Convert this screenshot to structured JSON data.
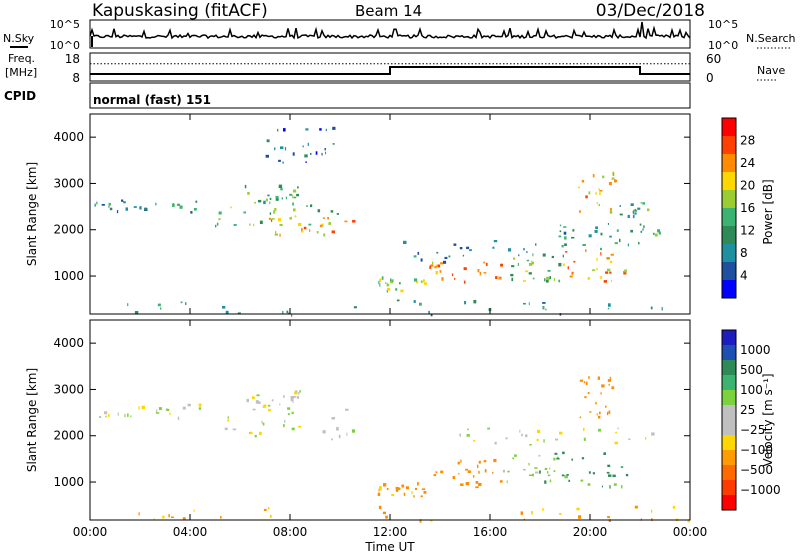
{
  "header": {
    "station": "Kapuskasing (fitACF)",
    "beam": "Beam 14",
    "date": "03/Dec/2018"
  },
  "noise_panel": {
    "left_label": "N.Sky",
    "right_label": "N.Search",
    "left_ticks": [
      "10^5",
      "10^0"
    ],
    "right_ticks": [
      "10^5",
      "10^0"
    ]
  },
  "freq_panel": {
    "left_label_1": "Freq.",
    "left_label_2": "[MHz]",
    "right_label": "Nave",
    "left_ticks": [
      "18",
      "8"
    ],
    "right_ticks": [
      "60",
      "0"
    ]
  },
  "cpid": {
    "label": "CPID",
    "value": "normal (fast) 151"
  },
  "power_colorbar": {
    "label": "Power [dB]",
    "ticks": [
      "28",
      "24",
      "20",
      "16",
      "12",
      "8",
      "4"
    ],
    "colors": [
      "#ff0000",
      "#ff4000",
      "#ff8c00",
      "#ffd700",
      "#9acd32",
      "#3cb371",
      "#2e8b57",
      "#1e90a0",
      "#1e50a0",
      "#0000ff"
    ]
  },
  "velocity_colorbar": {
    "label": "Velocity [m s⁻¹]",
    "ticks": [
      "1000",
      "500",
      "100",
      "25",
      "−25",
      "−100",
      "−500",
      "−1000"
    ],
    "colors": [
      "#1e1ebe",
      "#1e50b4",
      "#2e8b57",
      "#3cb371",
      "#7cd23c",
      "#c0c0c0",
      "#c0c0c0",
      "#ffd700",
      "#ff9c00",
      "#ff6a00",
      "#ff3c00",
      "#ff0000"
    ]
  },
  "chart_data": {
    "type": "heatmap",
    "title": "Kapuskasing (fitACF)",
    "xlabel": "Time UT",
    "ylabel": "Slant Range [km]",
    "x_ticks": [
      "00:00",
      "04:00",
      "08:00",
      "12:00",
      "16:00",
      "20:00",
      "00:00"
    ],
    "y_ticks": [
      1000,
      2000,
      3000,
      4000
    ],
    "x_range_hours": [
      0,
      24
    ],
    "y_range_km": [
      180,
      4500
    ],
    "frequency_steps": [
      {
        "from_hour": 0,
        "to_hour": 12,
        "freq_mhz": 10.5
      },
      {
        "from_hour": 12,
        "to_hour": 22,
        "freq_mhz": 13.0
      },
      {
        "from_hour": 22,
        "to_hour": 24,
        "freq_mhz": 10.5
      }
    ],
    "nave_level": 37,
    "power_regions": [
      {
        "t0": 0.0,
        "t1": 4.5,
        "r0": 2400,
        "r1": 2700,
        "power": 9
      },
      {
        "t0": 5.0,
        "t1": 10.5,
        "r0": 2100,
        "r1": 2600,
        "power": 14
      },
      {
        "t0": 7.0,
        "t1": 10.5,
        "r0": 1900,
        "r1": 2300,
        "power": 20
      },
      {
        "t0": 6.0,
        "t1": 8.5,
        "r0": 2600,
        "r1": 3000,
        "power": 12
      },
      {
        "t0": 7.0,
        "t1": 10.0,
        "r0": 3400,
        "r1": 4300,
        "power": 6
      },
      {
        "t0": 11.5,
        "t1": 13.5,
        "r0": 700,
        "r1": 1000,
        "power": 16
      },
      {
        "t0": 13.5,
        "t1": 16.5,
        "r0": 900,
        "r1": 1400,
        "power": 22
      },
      {
        "t0": 12.5,
        "t1": 19.0,
        "r0": 1300,
        "r1": 1800,
        "power": 8
      },
      {
        "t0": 16.5,
        "t1": 19.0,
        "r0": 900,
        "r1": 1400,
        "power": 14
      },
      {
        "t0": 19.0,
        "t1": 21.5,
        "r0": 900,
        "r1": 1600,
        "power": 22
      },
      {
        "t0": 19.5,
        "t1": 21.0,
        "r0": 2400,
        "r1": 3300,
        "power": 20
      },
      {
        "t0": 18.5,
        "t1": 22.0,
        "r0": 1600,
        "r1": 2200,
        "power": 10
      },
      {
        "t0": 21.0,
        "t1": 23.0,
        "r0": 1900,
        "r1": 2600,
        "power": 12
      },
      {
        "t0": 0.0,
        "t1": 24.0,
        "r0": 180,
        "r1": 500,
        "power": 10
      }
    ],
    "velocity_regions": [
      {
        "t0": 0.0,
        "t1": 4.5,
        "r0": 2400,
        "r1": 2700,
        "velocity": 0
      },
      {
        "t0": 5.0,
        "t1": 10.5,
        "r0": 1900,
        "r1": 2600,
        "velocity": 0
      },
      {
        "t0": 6.0,
        "t1": 8.5,
        "r0": 2600,
        "r1": 3000,
        "velocity": 0
      },
      {
        "t0": 11.5,
        "t1": 13.5,
        "r0": 700,
        "r1": 1000,
        "velocity": -150
      },
      {
        "t0": 13.5,
        "t1": 16.5,
        "r0": 900,
        "r1": 1500,
        "velocity": -300
      },
      {
        "t0": 16.5,
        "t1": 19.0,
        "r0": 1000,
        "r1": 1600,
        "velocity": 50
      },
      {
        "t0": 18.5,
        "t1": 21.5,
        "r0": 900,
        "r1": 1700,
        "velocity": 120
      },
      {
        "t0": 19.5,
        "t1": 21.0,
        "r0": 2400,
        "r1": 3300,
        "velocity": -300
      },
      {
        "t0": 14.5,
        "t1": 22.5,
        "r0": 1800,
        "r1": 2200,
        "velocity": 0
      },
      {
        "t0": 0.0,
        "t1": 24.0,
        "r0": 180,
        "r1": 500,
        "velocity": -100
      }
    ]
  }
}
